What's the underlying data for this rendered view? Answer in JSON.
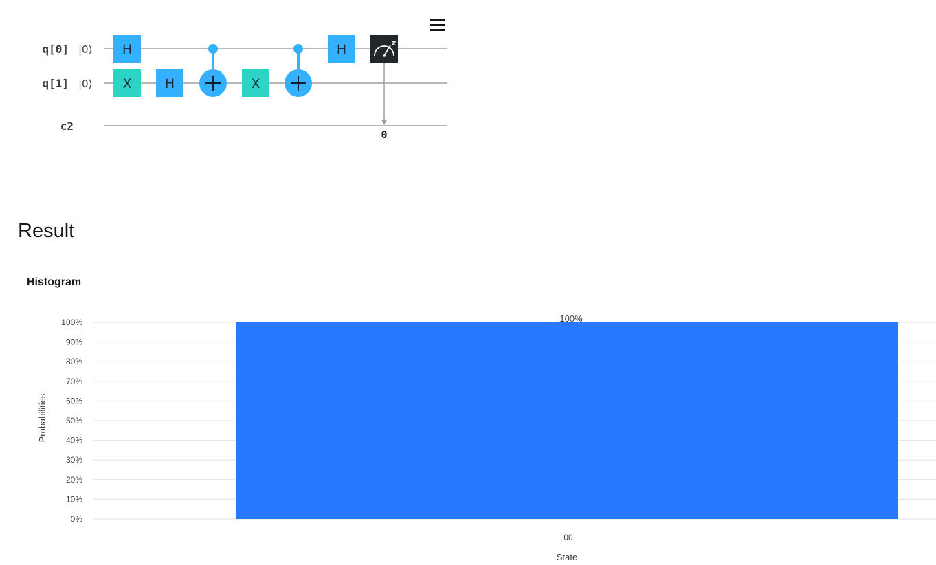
{
  "circuit": {
    "registers": [
      {
        "name": "q[0]",
        "ket": "|0⟩"
      },
      {
        "name": "q[1]",
        "ket": "|0⟩"
      }
    ],
    "classical_register": "c2",
    "gates": [
      {
        "type": "H",
        "qubit": 0,
        "step": 0,
        "label": "H"
      },
      {
        "type": "X",
        "qubit": 1,
        "step": 0,
        "label": "X"
      },
      {
        "type": "H",
        "qubit": 1,
        "step": 1,
        "label": "H"
      },
      {
        "type": "CNOT",
        "control": 0,
        "target": 1,
        "step": 2
      },
      {
        "type": "X",
        "qubit": 1,
        "step": 3,
        "label": "X"
      },
      {
        "type": "CNOT",
        "control": 0,
        "target": 1,
        "step": 4
      },
      {
        "type": "H",
        "qubit": 0,
        "step": 5,
        "label": "H"
      },
      {
        "type": "Measure",
        "qubit": 0,
        "step": 6,
        "bit_label": "0",
        "basis": "z"
      }
    ],
    "colors": {
      "hadamard": "#33b1ff",
      "pauli_x": "#2dd4c6",
      "cnot": "#33b1ff",
      "measure": "#21272a",
      "wire": "#9e9e9e"
    },
    "menu_icon": "hamburger-icon"
  },
  "result": {
    "title": "Result",
    "histogram_title": "Histogram"
  },
  "chart_data": {
    "type": "bar",
    "categories": [
      "00"
    ],
    "values": [
      100
    ],
    "data_labels": [
      "100%"
    ],
    "xlabel": "State",
    "ylabel": "Probabilities",
    "ylim": [
      0,
      100
    ],
    "yticks": [
      0,
      10,
      20,
      30,
      40,
      50,
      60,
      70,
      80,
      90,
      100
    ],
    "ytick_labels": [
      "0%",
      "10%",
      "20%",
      "30%",
      "40%",
      "50%",
      "60%",
      "70%",
      "80%",
      "90%",
      "100%"
    ],
    "grid": true,
    "legend": "none",
    "bar_color": "#2979ff"
  }
}
